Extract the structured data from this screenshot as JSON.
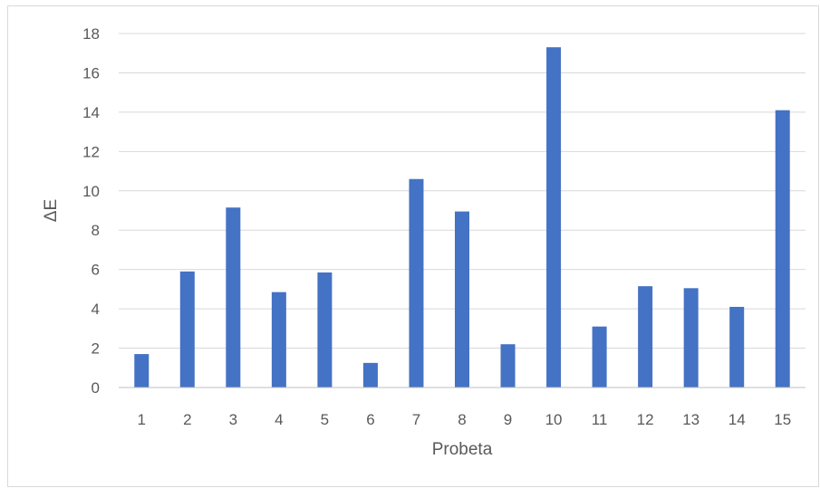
{
  "chart_data": {
    "type": "bar",
    "title": "",
    "xlabel": "Probeta",
    "ylabel": "ΔE",
    "categories": [
      "1",
      "2",
      "3",
      "4",
      "5",
      "6",
      "7",
      "8",
      "9",
      "10",
      "11",
      "12",
      "13",
      "14",
      "15"
    ],
    "values": [
      1.7,
      5.9,
      9.15,
      4.85,
      5.85,
      1.25,
      10.6,
      8.95,
      2.2,
      17.3,
      3.1,
      5.15,
      5.05,
      4.1,
      14.1
    ],
    "ylim": [
      0,
      18
    ],
    "yticks": [
      "0",
      "2",
      "4",
      "6",
      "8",
      "10",
      "12",
      "14",
      "16",
      "18"
    ],
    "grid": true,
    "bar_color": "#4472c4",
    "grid_color": "#d9d9d9"
  }
}
